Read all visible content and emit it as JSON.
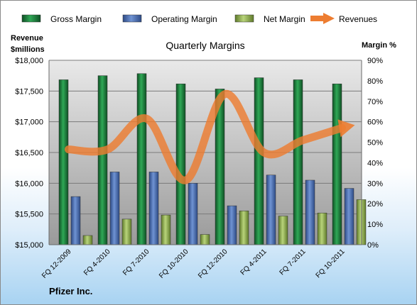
{
  "chart_data": {
    "type": "bar",
    "title": "Quarterly Margins",
    "left_axis_label": [
      "Revenue",
      "$millions"
    ],
    "right_axis_label": "Margin %",
    "footer": "Pfizer Inc.",
    "legend_position": "top",
    "grid": true,
    "categories": [
      "FQ 12-2009",
      "FQ 4-2010",
      "FQ 7-2010",
      "FQ 10-2010",
      "FQ 12-2010",
      "FQ 4-2011",
      "FQ 7-2011",
      "FQ 10-2011"
    ],
    "left_axis": {
      "min": 15000,
      "max": 18000,
      "step": 500,
      "tick_labels": [
        "$15,000",
        "$15,500",
        "$16,000",
        "$16,500",
        "$17,000",
        "$17,500",
        "$18,000"
      ]
    },
    "right_axis": {
      "min": 0,
      "max": 90,
      "step": 10,
      "tick_labels": [
        "0%",
        "10%",
        "20%",
        "30%",
        "40%",
        "50%",
        "60%",
        "70%",
        "80%",
        "90%"
      ]
    },
    "series": [
      {
        "name": "Gross Margin",
        "kind": "bar",
        "axis": "right",
        "color": "#1e7a3c",
        "values": [
          80.5,
          82.5,
          83.5,
          78.5,
          76,
          81.5,
          80.5,
          78.5
        ]
      },
      {
        "name": "Operating Margin",
        "kind": "bar",
        "axis": "right",
        "color": "#4a6fb5",
        "values": [
          23.5,
          35.5,
          35.5,
          30,
          19,
          34,
          31.5,
          27.5
        ]
      },
      {
        "name": "Net Margin",
        "kind": "bar",
        "axis": "right",
        "color": "#9bbb59",
        "values": [
          4.5,
          12.5,
          14.5,
          5,
          16.5,
          14,
          15.5,
          22
        ]
      },
      {
        "name": "Revenues",
        "kind": "line",
        "axis": "left",
        "color": "#ed7d31",
        "values": [
          16550,
          16550,
          17050,
          16050,
          17450,
          16500,
          16700,
          16900
        ]
      }
    ]
  }
}
